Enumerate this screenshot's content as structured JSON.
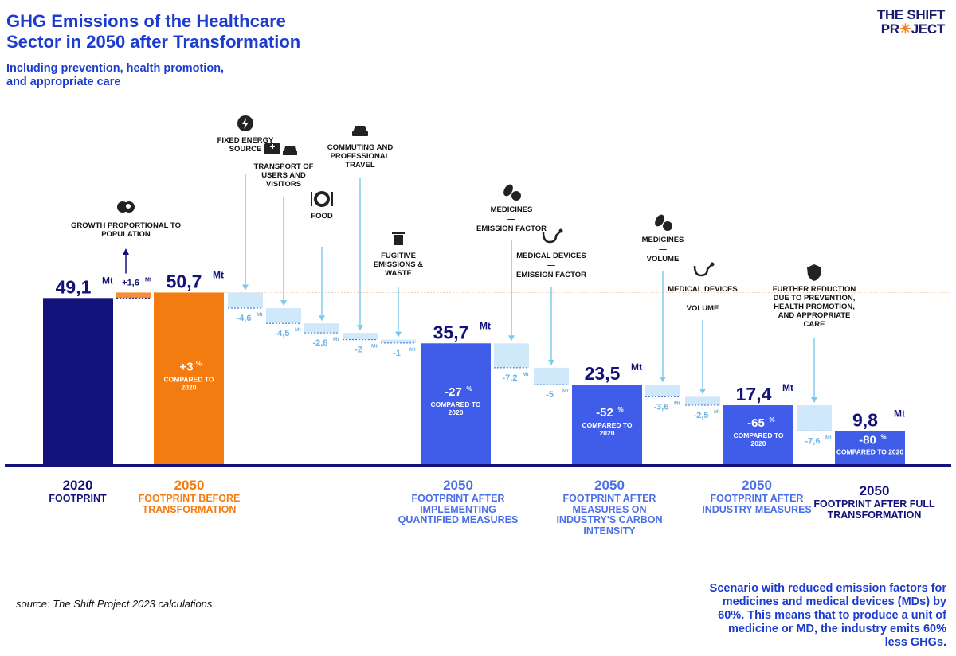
{
  "title": "GHG Emissions of the Healthcare Sector in 2050 after Transformation",
  "subtitle": "Including prevention, health promotion, and appropriate care",
  "logo": {
    "line1": "THE SHIFT",
    "line2a": "PR",
    "line2b": "☀",
    "line2c": "JECT"
  },
  "source": "source: The Shift Project 2023 calculations",
  "note": "Scenario with reduced emission factors for medicines and medical devices (MDs) by 60%. This means that to produce a unit of medicine or MD, the industry emits 60% less GHGs.",
  "colors": {
    "navy": "#12127a",
    "orange": "#f47b0f",
    "blue": "#3f5de8",
    "light": "#cfe9fb",
    "arrow": "#7cc8ee",
    "reduction_text": "#6fb3e3"
  },
  "categories": [
    {
      "year": "2020",
      "label": "FOOTPRINT",
      "color": "#12127a"
    },
    {
      "year": "2050",
      "label": "FOOTPRINT BEFORE TRANSFORMATION",
      "color": "#f47b0f"
    },
    {
      "year": "2050",
      "label": "FOOTPRINT AFTER IMPLEMENTING QUANTIFIED MEASURES",
      "color": "#4a6fe8"
    },
    {
      "year": "2050",
      "label": "FOOTPRINT AFTER MEASURES ON INDUSTRY'S CARBON INTENSITY",
      "color": "#4a6fe8"
    },
    {
      "year": "2050",
      "label": "FOOTPRINT AFTER INDUSTRY MEASURES",
      "color": "#4a6fe8"
    },
    {
      "year": "2050",
      "label": "FOOTPRINT AFTER FULL TRANSFORMATION",
      "color": "#12127a"
    }
  ],
  "chart_data": {
    "type": "bar",
    "unit": "Mt",
    "ylim": [
      0,
      55
    ],
    "steps": [
      {
        "kind": "total",
        "value": 49.1,
        "label": "49,1",
        "unit": "Mt",
        "color": "#12127a"
      },
      {
        "kind": "increase",
        "value": 1.6,
        "label": "+1,6",
        "unit": "Mt",
        "annotation": "GROWTH PROPORTIONAL TO POPULATION",
        "icon": "population-icon"
      },
      {
        "kind": "total",
        "value": 50.7,
        "label": "50,7",
        "unit": "Mt",
        "pct": "+3",
        "pct_unit": "%",
        "pct_note": "COMPARED TO 2020",
        "color": "#f47b0f"
      },
      {
        "kind": "reduction",
        "value": -4.6,
        "label": "-4,6",
        "unit": "Mt",
        "annotation": "FIXED ENERGY SOURCE",
        "icon": "lightning-icon"
      },
      {
        "kind": "reduction",
        "value": -4.5,
        "label": "-4,5",
        "unit": "Mt",
        "annotation": "TRANSPORT OF USERS AND VISITORS",
        "icon": "ambulance-car-icon"
      },
      {
        "kind": "reduction",
        "value": -2.8,
        "label": "-2,8",
        "unit": "Mt",
        "annotation": "FOOD",
        "icon": "plate-icon"
      },
      {
        "kind": "reduction",
        "value": -2.0,
        "label": "-2",
        "unit": "Mt",
        "annotation": "COMMUTING AND PROFESSIONAL TRAVEL",
        "icon": "car-icon"
      },
      {
        "kind": "reduction",
        "value": -1.0,
        "label": "-1",
        "unit": "Mt",
        "annotation": "FUGITIVE EMISSIONS & WASTE",
        "icon": "trash-icon"
      },
      {
        "kind": "total",
        "value": 35.7,
        "label": "35,7",
        "unit": "Mt",
        "pct": "-27",
        "pct_unit": "%",
        "pct_note": "COMPARED TO 2020",
        "color": "#3f5de8"
      },
      {
        "kind": "reduction",
        "value": -7.2,
        "label": "-7,2",
        "unit": "Mt",
        "annotation": "MEDICINES — EMISSION FACTOR",
        "icon": "pills-icon"
      },
      {
        "kind": "reduction",
        "value": -5.0,
        "label": "-5",
        "unit": "Mt",
        "annotation": "MEDICAL DEVICES — EMISSION FACTOR",
        "icon": "stethoscope-icon"
      },
      {
        "kind": "total",
        "value": 23.5,
        "label": "23,5",
        "unit": "Mt",
        "pct": "-52",
        "pct_unit": "%",
        "pct_note": "COMPARED TO 2020",
        "color": "#3f5de8"
      },
      {
        "kind": "reduction",
        "value": -3.6,
        "label": "-3,6",
        "unit": "Mt",
        "annotation": "MEDICINES — VOLUME",
        "icon": "pills-icon"
      },
      {
        "kind": "reduction",
        "value": -2.5,
        "label": "-2,5",
        "unit": "Mt",
        "annotation": "MEDICAL DEVICES — VOLUME",
        "icon": "stethoscope-icon"
      },
      {
        "kind": "total",
        "value": 17.4,
        "label": "17,4",
        "unit": "Mt",
        "pct": "-65",
        "pct_unit": "%",
        "pct_note": "COMPARED TO 2020",
        "color": "#3f5de8"
      },
      {
        "kind": "reduction",
        "value": -7.6,
        "label": "-7,6",
        "unit": "Mt",
        "annotation": "FURTHER REDUCTION DUE TO PREVENTION, HEALTH PROMOTION, AND APPROPRIATE CARE",
        "icon": "shield-icon"
      },
      {
        "kind": "total",
        "value": 9.8,
        "label": "9,8",
        "unit": "Mt",
        "pct": "-80",
        "pct_unit": "%",
        "pct_note": "COMPARED TO 2020",
        "color": "#3f5de8"
      }
    ]
  }
}
